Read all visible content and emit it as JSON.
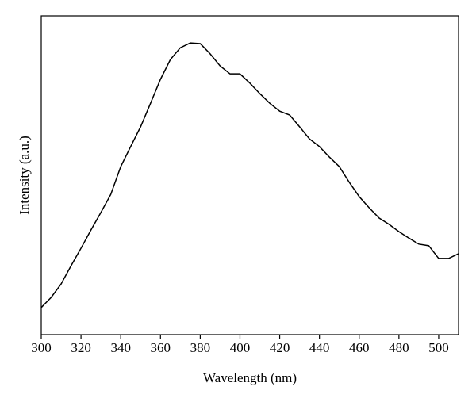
{
  "chart_data": {
    "type": "line",
    "xlabel": "Wavelength (nm)",
    "ylabel": "Intensity (a.u.)",
    "x": [
      300,
      305,
      310,
      315,
      320,
      325,
      330,
      335,
      340,
      345,
      350,
      355,
      360,
      365,
      370,
      375,
      380,
      385,
      390,
      395,
      400,
      405,
      410,
      415,
      420,
      425,
      430,
      435,
      440,
      445,
      450,
      455,
      460,
      465,
      470,
      475,
      480,
      485,
      490,
      495,
      500,
      505,
      510
    ],
    "series": [
      {
        "color": "#000000",
        "values": [
          8.5,
          11.7,
          15.9,
          21.6,
          27.1,
          32.8,
          38.3,
          44.0,
          52.7,
          59.0,
          65.2,
          72.6,
          80.1,
          86.3,
          90.0,
          91.5,
          91.3,
          88.1,
          84.3,
          81.8,
          81.8,
          78.9,
          75.6,
          72.6,
          70.1,
          68.9,
          65.2,
          61.4,
          59.0,
          55.7,
          52.7,
          47.8,
          43.3,
          39.8,
          36.6,
          34.6,
          32.3,
          30.3,
          28.4,
          27.9,
          23.9,
          23.9,
          25.4
        ]
      }
    ],
    "xlim": [
      300,
      510
    ],
    "xticks": [
      300,
      320,
      340,
      360,
      380,
      400,
      420,
      440,
      460,
      480,
      500
    ],
    "ylim": [
      0,
      100
    ]
  }
}
